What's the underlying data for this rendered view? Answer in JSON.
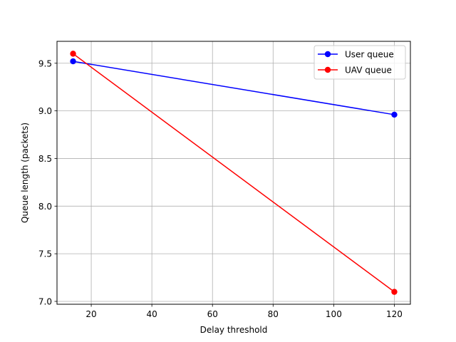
{
  "chart_data": {
    "type": "line",
    "title": "",
    "xlabel": "Delay threshold",
    "ylabel": "Queue length (packets)",
    "xlim": [
      8.7,
      125.3
    ],
    "ylim": [
      6.97,
      9.73
    ],
    "xticks": [
      20,
      40,
      60,
      80,
      100,
      120
    ],
    "yticks": [
      7.0,
      7.5,
      8.0,
      8.5,
      9.0,
      9.5
    ],
    "xtick_labels": [
      "20",
      "40",
      "60",
      "80",
      "100",
      "120"
    ],
    "ytick_labels": [
      "7.0",
      "7.5",
      "8.0",
      "8.5",
      "9.0",
      "9.5"
    ],
    "grid": true,
    "legend_position": "top-right",
    "series": [
      {
        "name": "User queue",
        "color": "#0000ff",
        "marker": "circle",
        "x": [
          14,
          120
        ],
        "y": [
          9.52,
          8.96
        ]
      },
      {
        "name": "UAV queue",
        "color": "#ff0000",
        "marker": "circle",
        "x": [
          14,
          120
        ],
        "y": [
          9.6,
          7.1
        ]
      }
    ]
  }
}
